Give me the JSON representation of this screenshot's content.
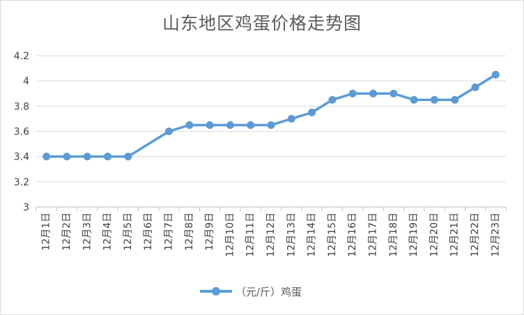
{
  "chart_data": {
    "type": "line",
    "title": "山东地区鸡蛋价格走势图",
    "xlabel": "",
    "ylabel": "",
    "categories": [
      "12月1日",
      "12月2日",
      "12月3日",
      "12月4日",
      "12月5日",
      "12月6日",
      "12月7日",
      "12月8日",
      "12月9日",
      "12月10日",
      "12月11日",
      "12月12日",
      "12月13日",
      "12月14日",
      "12月15日",
      "12月16日",
      "12月17日",
      "12月18日",
      "12月19日",
      "12月20日",
      "12月21日",
      "12月22日",
      "12月23日"
    ],
    "series": [
      {
        "name": "（元/斤）鸡蛋",
        "values": [
          3.4,
          3.4,
          3.4,
          3.4,
          3.4,
          null,
          3.6,
          3.65,
          3.65,
          3.65,
          3.65,
          3.65,
          3.7,
          3.75,
          3.85,
          3.9,
          3.9,
          3.9,
          3.85,
          3.85,
          3.85,
          3.95,
          4.05
        ]
      }
    ],
    "ylim": [
      3,
      4.2
    ],
    "yticks": [
      "3",
      "3.2",
      "3.4",
      "3.6",
      "3.8",
      "4",
      "4.2"
    ],
    "grid": true,
    "legend": "bottom",
    "colors": {
      "line": "#5b9bd5",
      "grid": "#d9d9d9"
    }
  }
}
